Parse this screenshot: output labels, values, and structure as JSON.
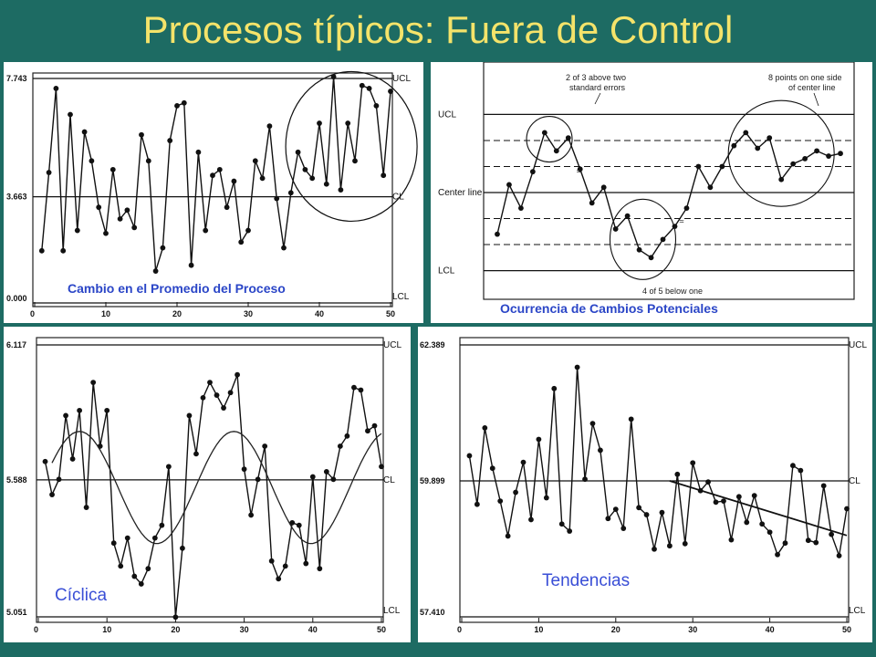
{
  "title": "Procesos típicos: Fuera de Control",
  "colors": {
    "background": "#1d6b63",
    "title": "#f4e36a",
    "label": "#2b46c7"
  },
  "chart_data": [
    {
      "type": "line",
      "label": "Cambio en el Promedio del Proceso",
      "ylim": [
        0.0,
        7.743
      ],
      "xlim": [
        0,
        50
      ],
      "yticks": [
        "7.743",
        "3.663",
        "0.000"
      ],
      "xticks": [
        "0",
        "10",
        "20",
        "30",
        "40",
        "50"
      ],
      "ucl": 7.743,
      "cl": 3.663,
      "lcl": 0.0,
      "ucl_label": "UCL",
      "cl_label": "CL",
      "lcl_label": "LCL",
      "x": [
        1,
        2,
        3,
        4,
        5,
        6,
        7,
        8,
        9,
        10,
        11,
        12,
        13,
        14,
        15,
        16,
        17,
        18,
        19,
        20,
        21,
        22,
        23,
        24,
        25,
        26,
        27,
        28,
        29,
        30,
        31,
        32,
        33,
        34,
        35,
        36,
        37,
        38,
        39,
        40,
        41,
        42,
        43,
        44,
        45,
        46,
        47,
        48,
        49,
        50
      ],
      "y": [
        1.8,
        4.5,
        7.4,
        1.8,
        6.5,
        2.5,
        5.9,
        4.9,
        3.3,
        2.4,
        4.6,
        2.9,
        3.2,
        2.6,
        5.8,
        4.9,
        1.1,
        1.9,
        5.6,
        6.8,
        6.9,
        1.3,
        5.2,
        2.5,
        4.4,
        4.6,
        3.3,
        4.2,
        2.1,
        2.5,
        4.9,
        4.3,
        6.1,
        3.6,
        1.9,
        3.8,
        5.2,
        4.6,
        4.3,
        6.2,
        4.1,
        7.8,
        3.9,
        6.2,
        4.9,
        7.5,
        7.4,
        6.8,
        4.4,
        7.3
      ]
    },
    {
      "type": "line",
      "label": "Ocurrencia de Cambios Potenciales",
      "ylim": [
        -3.4,
        3.4
      ],
      "xlim": [
        0,
        31
      ],
      "ucl": 3.0,
      "cl": 0.0,
      "lcl": -3.0,
      "ucl_label": "UCL",
      "cl_label": "Center line",
      "lcl_label": "LCL",
      "zone_lines": [
        2.0,
        1.0,
        -1.0,
        -2.0
      ],
      "annotations": [
        "2 of 3 above two",
        "standard errors",
        "8 points on one side",
        "of center line",
        "4 of 5 below one"
      ],
      "x": [
        1,
        2,
        3,
        4,
        5,
        6,
        7,
        8,
        9,
        10,
        11,
        12,
        13,
        14,
        15,
        16,
        17,
        18,
        19,
        20,
        21,
        22,
        23,
        24,
        25,
        26,
        27,
        28,
        29,
        30
      ],
      "y": [
        -1.6,
        0.3,
        -0.6,
        0.8,
        2.3,
        1.6,
        2.1,
        0.9,
        -0.4,
        0.2,
        -1.4,
        -0.9,
        -2.2,
        -2.5,
        -1.8,
        -1.3,
        -0.6,
        1.0,
        0.2,
        1.0,
        1.8,
        2.3,
        1.7,
        2.1,
        0.5,
        1.1,
        1.3,
        1.6,
        1.4,
        1.5
      ]
    },
    {
      "type": "line",
      "label": "Cíclica",
      "ylim": [
        5.051,
        6.117
      ],
      "xlim": [
        0,
        50
      ],
      "yticks": [
        "6.117",
        "5.588",
        "5.051"
      ],
      "xticks": [
        "0",
        "10",
        "20",
        "30",
        "40",
        "50"
      ],
      "ucl": 6.117,
      "cl": 5.588,
      "lcl": 5.051,
      "ucl_label": "UCL",
      "cl_label": "CL",
      "lcl_label": "LCL",
      "x": [
        1,
        2,
        3,
        4,
        5,
        6,
        7,
        8,
        9,
        10,
        11,
        12,
        13,
        14,
        15,
        16,
        17,
        18,
        19,
        20,
        21,
        22,
        23,
        24,
        25,
        26,
        27,
        28,
        29,
        30,
        31,
        32,
        33,
        34,
        35,
        36,
        37,
        38,
        39,
        40,
        41,
        42,
        43,
        44,
        45,
        46,
        47,
        48,
        49,
        50
      ],
      "y": [
        5.66,
        5.53,
        5.59,
        5.84,
        5.67,
        5.86,
        5.48,
        5.97,
        5.72,
        5.86,
        5.34,
        5.25,
        5.36,
        5.21,
        5.18,
        5.24,
        5.36,
        5.41,
        5.64,
        5.05,
        5.32,
        5.84,
        5.69,
        5.91,
        5.97,
        5.92,
        5.87,
        5.93,
        6.0,
        5.63,
        5.45,
        5.59,
        5.72,
        5.27,
        5.2,
        5.25,
        5.42,
        5.41,
        5.26,
        5.6,
        5.24,
        5.62,
        5.59,
        5.72,
        5.76,
        5.95,
        5.94,
        5.78,
        5.8,
        5.64
      ]
    },
    {
      "type": "line",
      "label": "Tendencias",
      "ylim": [
        57.41,
        62.389
      ],
      "xlim": [
        0,
        50
      ],
      "yticks": [
        "62.389",
        "59.899",
        "57.410"
      ],
      "xticks": [
        "0",
        "10",
        "20",
        "30",
        "40",
        "50"
      ],
      "ucl": 62.389,
      "cl": 59.899,
      "lcl": 57.41,
      "ucl_label": "UCL",
      "cl_label": "CL",
      "lcl_label": "LCL",
      "x": [
        1,
        2,
        3,
        4,
        5,
        6,
        7,
        8,
        9,
        10,
        11,
        12,
        13,
        14,
        15,
        16,
        17,
        18,
        19,
        20,
        21,
        22,
        23,
        24,
        25,
        26,
        27,
        28,
        29,
        30,
        31,
        32,
        33,
        34,
        35,
        36,
        37,
        38,
        39,
        40,
        41,
        42,
        43,
        44,
        45,
        46,
        47,
        48,
        49,
        50
      ],
      "y": [
        60.36,
        59.47,
        60.87,
        60.13,
        59.53,
        58.89,
        59.69,
        60.24,
        59.19,
        60.66,
        59.59,
        61.59,
        59.11,
        58.98,
        61.98,
        59.93,
        60.95,
        60.46,
        59.21,
        59.38,
        59.03,
        61.03,
        59.41,
        59.28,
        58.65,
        59.32,
        58.71,
        60.02,
        58.75,
        60.23,
        59.72,
        59.88,
        59.51,
        59.53,
        58.82,
        59.61,
        59.14,
        59.63,
        59.11,
        58.96,
        58.55,
        58.76,
        60.18,
        60.09,
        58.81,
        58.77,
        59.81,
        58.92,
        58.53,
        59.39
      ]
    }
  ]
}
